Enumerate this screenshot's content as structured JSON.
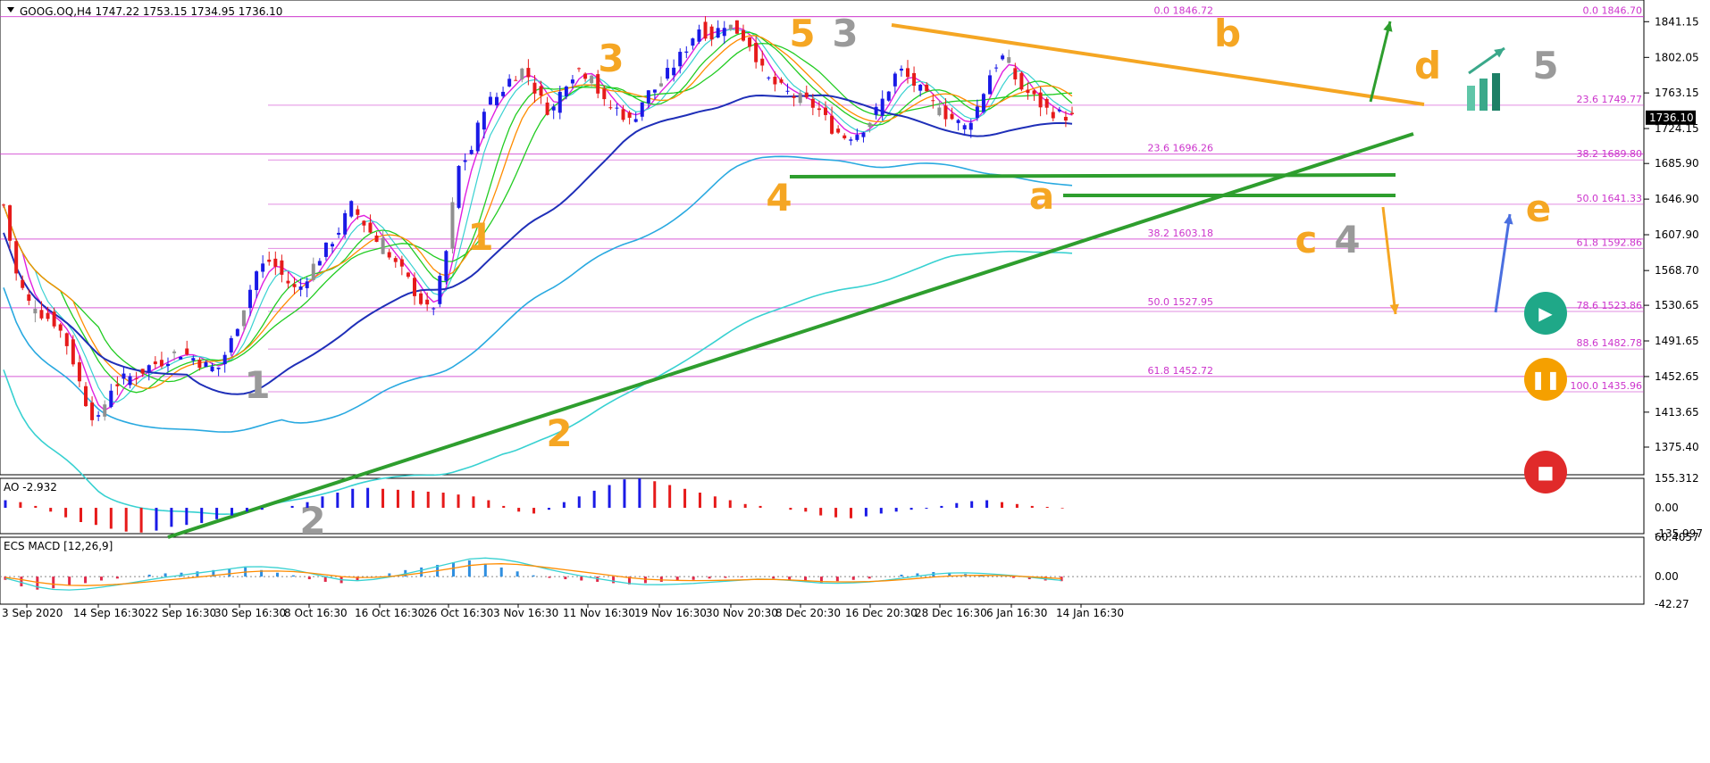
{
  "window": {
    "symbol_line": "GOOG.OQ,H4  1747.22 1753.15 1734.95 1736.10",
    "ao_label": "AO -2.932",
    "macd_label": "ECS MACD [12,26,9]",
    "price_badge": "1736.10"
  },
  "colors": {
    "bull": "#1a1ae6",
    "bear": "#e61a1a",
    "neutral": "#909090",
    "fib": "#cc33cc",
    "wave_orange": "#f5a623",
    "wave_gray": "#9a9a9a",
    "trend_green": "#2e9e2e",
    "channel_orange": "#f5a623",
    "ma_blue": "#1f2fb8",
    "ma_cyan": "#29a9e0",
    "ma_teal": "#38d1d1",
    "ma_green": "#22cc22",
    "ma_orange": "#ff8c00",
    "ma_magenta": "#e020e0",
    "play": "#1fa888",
    "pause": "#f5a000",
    "stop": "#e02a2a"
  },
  "chart_data": [
    {
      "type": "candlestick",
      "title": "GOOG.OQ,H4",
      "ohlc_header": {
        "open": 1747.22,
        "high": 1753.15,
        "low": 1734.95,
        "close": 1736.1
      },
      "ylim": [
        1350,
        1860
      ],
      "y_ticks": [
        1841.15,
        1802.05,
        1763.15,
        1724.15,
        1685.9,
        1646.9,
        1607.9,
        1568.7,
        1530.65,
        1491.65,
        1452.65,
        1413.65,
        1375.4
      ],
      "y_tick_labels": [
        "1841.15",
        "1802.05",
        "1763.15",
        "1724.15",
        "1685.90",
        "1646.90",
        "1607.90",
        "1568.70",
        "1530.65",
        "1491.65",
        "1452.65",
        "1413.65",
        "1375.40"
      ],
      "x_ticks": [
        "3 Sep 2020",
        "14 Sep 16:30",
        "22 Sep 16:30",
        "30 Sep 16:30",
        "8 Oct 16:30",
        "16 Oct 16:30",
        "26 Oct 16:30",
        "3 Nov 16:30",
        "11 Nov 16:30",
        "19 Nov 16:30",
        "30 Nov 20:30",
        "8 Dec 20:30",
        "16 Dec 20:30",
        "28 Dec 16:30",
        "6 Jan 16:30",
        "14 Jan 16:30"
      ],
      "last_price": 1736.1,
      "price_path": [
        1640,
        1560,
        1530,
        1520,
        1510,
        1480,
        1430,
        1400,
        1440,
        1450,
        1455,
        1465,
        1470,
        1480,
        1475,
        1465,
        1460,
        1490,
        1530,
        1570,
        1580,
        1560,
        1545,
        1570,
        1590,
        1610,
        1640,
        1620,
        1600,
        1580,
        1565,
        1540,
        1520,
        1575,
        1680,
        1700,
        1750,
        1760,
        1780,
        1790,
        1760,
        1740,
        1775,
        1790,
        1780,
        1750,
        1745,
        1730,
        1760,
        1770,
        1790,
        1810,
        1835,
        1825,
        1840,
        1830,
        1815,
        1780,
        1770,
        1760,
        1755,
        1745,
        1725,
        1715,
        1720,
        1735,
        1760,
        1790,
        1775,
        1760,
        1745,
        1735,
        1725,
        1750,
        1790,
        1805,
        1770,
        1760,
        1745,
        1740,
        1736.1
      ],
      "fib_levels_left": [
        {
          "label": "0.0 1846.72",
          "value": 1846.72
        },
        {
          "label": "23.6 1696.26",
          "value": 1696.26
        },
        {
          "label": "38.2 1603.18",
          "value": 1603.18
        },
        {
          "label": "50.0 1527.95",
          "value": 1527.95
        },
        {
          "label": "61.8 1452.72",
          "value": 1452.72
        }
      ],
      "fib_levels_right": [
        {
          "label": "0.0 1846.70",
          "value": 1846.7
        },
        {
          "label": "23.6 1749.77",
          "value": 1749.77
        },
        {
          "label": "38.2 1689.80",
          "value": 1689.8
        },
        {
          "label": "50.0 1641.33",
          "value": 1641.33
        },
        {
          "label": "61.8 1592.86",
          "value": 1592.86
        },
        {
          "label": "78.6 1523.86",
          "value": 1523.86
        },
        {
          "label": "88.6 1482.78",
          "value": 1482.78
        },
        {
          "label": "100.0 1435.96",
          "value": 1435.96
        }
      ],
      "wave_labels_orange": [
        "5",
        "3",
        "1",
        "2",
        "4",
        "a",
        "b",
        "c",
        "d",
        "e"
      ],
      "wave_labels_gray": [
        "3",
        "1",
        "2",
        "4",
        "5"
      ]
    },
    {
      "type": "bar",
      "title": "AO -2.932",
      "indicator": "AO",
      "last_value": -2.932,
      "ylim": [
        -135.997,
        155.312
      ],
      "y_tick_labels": [
        "155.312",
        "0.00",
        "-135.997"
      ],
      "values": [
        40,
        30,
        10,
        -20,
        -50,
        -75,
        -90,
        -110,
        -125,
        -130,
        -120,
        -100,
        -90,
        -80,
        -60,
        -40,
        -20,
        -10,
        0,
        10,
        30,
        60,
        80,
        100,
        105,
        100,
        95,
        90,
        85,
        80,
        70,
        60,
        40,
        10,
        -20,
        -30,
        -10,
        30,
        60,
        90,
        120,
        150,
        155,
        140,
        120,
        100,
        80,
        60,
        40,
        20,
        10,
        0,
        -10,
        -20,
        -40,
        -50,
        -55,
        -45,
        -30,
        -20,
        -10,
        -5,
        10,
        25,
        35,
        40,
        30,
        20,
        10,
        5,
        -3
      ]
    },
    {
      "type": "bar",
      "title": "ECS MACD [12,26,9]",
      "indicator": "MACD",
      "params": [
        12,
        26,
        9
      ],
      "ylim": [
        -42.27,
        60.4057
      ],
      "y_tick_labels": [
        "60.4057",
        "0.00",
        "-42.27"
      ],
      "values": [
        -5,
        -15,
        -20,
        -18,
        -14,
        -10,
        -6,
        -3,
        0,
        3,
        5,
        6,
        8,
        10,
        12,
        14,
        10,
        6,
        2,
        -4,
        -8,
        -10,
        -6,
        0,
        5,
        10,
        14,
        18,
        22,
        25,
        20,
        14,
        8,
        2,
        -2,
        -4,
        -6,
        -8,
        -10,
        -12,
        -10,
        -8,
        -6,
        -5,
        -3,
        -2,
        -1,
        0,
        -3,
        -6,
        -8,
        -9,
        -7,
        -5,
        -3,
        0,
        3,
        5,
        7,
        6,
        4,
        2,
        0,
        -2,
        -4,
        -6,
        -7
      ]
    }
  ],
  "controls": {
    "play_label": "▶",
    "pause_label": "❚❚",
    "stop_label": "■"
  }
}
